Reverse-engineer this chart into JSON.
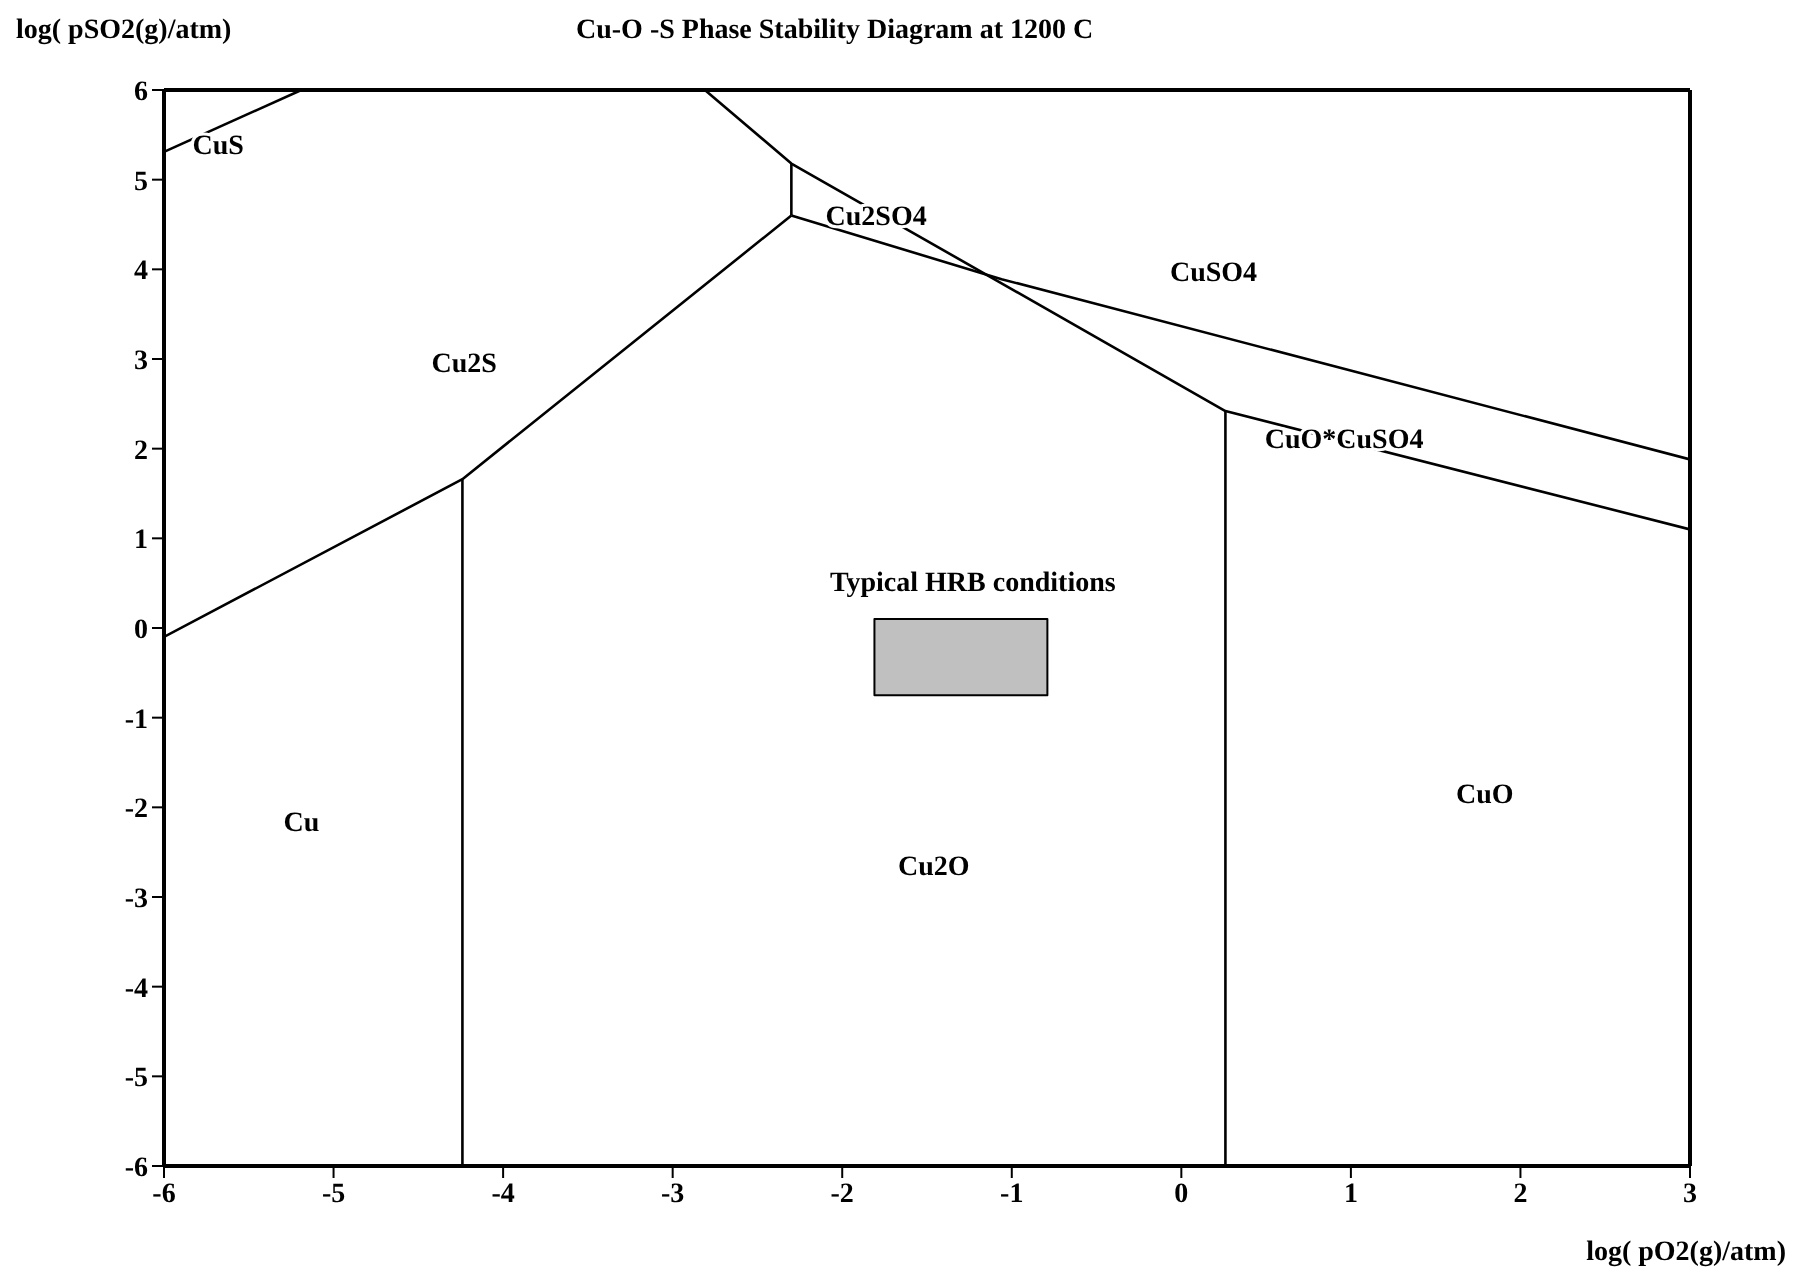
{
  "chart_data": {
    "type": "line",
    "title": "Cu-O -S Phase Stability Diagram at  1200 C",
    "xlabel": "log( pO2(g)/atm)",
    "ylabel": "log( pSO2(g)/atm)",
    "xlim": [
      -6,
      3
    ],
    "xticks": [
      -6,
      -5,
      -4,
      -3,
      -2,
      -1,
      0,
      1,
      2,
      3
    ],
    "ylim": [
      -6,
      6
    ],
    "yticks": [
      -6,
      -5,
      -4,
      -3,
      -2,
      -1,
      0,
      1,
      2,
      3,
      4,
      5,
      6
    ],
    "grid": false,
    "marker": "none",
    "line_style": "solid",
    "series": [
      {
        "color": "#000000",
        "x": [
          -6,
          -5.19
        ],
        "values": [
          5.31,
          6
        ]
      },
      {
        "color": "#000000",
        "x": [
          -6,
          -4.24,
          -2.3
        ],
        "values": [
          -0.1,
          1.66,
          4.6
        ]
      },
      {
        "color": "#000000",
        "x": [
          -4.24,
          -4.24
        ],
        "values": [
          1.66,
          -6
        ]
      },
      {
        "color": "#000000",
        "x": [
          -2.3,
          -2.3
        ],
        "values": [
          4.6,
          5.18
        ]
      },
      {
        "color": "#000000",
        "x": [
          -2.81,
          -2.3,
          0.26,
          3
        ],
        "values": [
          6,
          5.18,
          2.42,
          1.1
        ]
      },
      {
        "color": "#000000",
        "x": [
          -2.3,
          -1.06,
          3
        ],
        "values": [
          4.6,
          3.89,
          1.88
        ]
      },
      {
        "color": "#000000",
        "x": [
          0.26,
          0.26
        ],
        "values": [
          2.42,
          -6
        ]
      },
      {
        "type": "area",
        "color": "#c0c0c0",
        "x": [
          -1.81,
          -0.79,
          -0.79,
          -1.81,
          -1.81
        ],
        "values": [
          0.1,
          0.1,
          -0.75,
          -0.75,
          0.1
        ]
      }
    ],
    "annotations": [
      "CuS",
      "Cu2S",
      "Cu2SO4",
      "CuSO4",
      "CuO*CuSO4",
      "Typical HRB conditions",
      "Cu",
      "Cu2O",
      "CuO"
    ]
  }
}
